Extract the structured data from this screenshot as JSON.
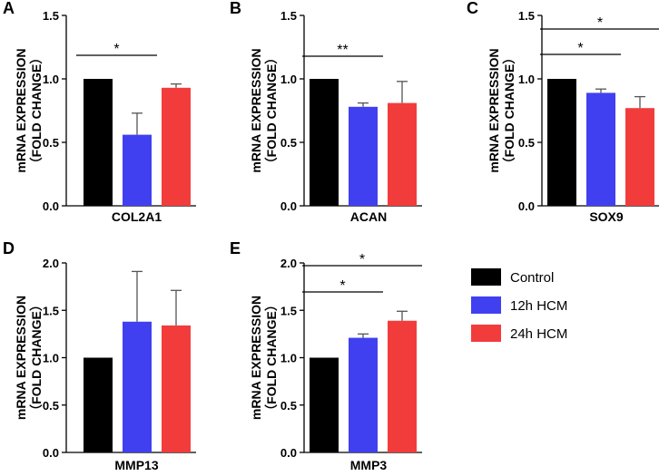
{
  "legend": [
    {
      "label": "Control",
      "color": "#000000"
    },
    {
      "label": "12h HCM",
      "color": "#4040f0"
    },
    {
      "label": "24h HCM",
      "color": "#f23c3c"
    }
  ],
  "chart_data": [
    {
      "type": "bar",
      "panel": "A",
      "title": "",
      "xlabel": "COL2A1",
      "ylabel": [
        "mRNA EXPRESSION",
        "（FOLD CHANGE）"
      ],
      "categories": [
        "Control",
        "12h HCM",
        "24h HCM"
      ],
      "values": [
        1.0,
        0.56,
        0.93
      ],
      "errors": [
        0,
        0.17,
        0.03
      ],
      "ylim": [
        0,
        1.5
      ],
      "yticks": [
        "0.0",
        "0.5",
        "1.0",
        "1.5"
      ],
      "significance": [
        {
          "from": 0,
          "to": 1,
          "label": "*"
        }
      ]
    },
    {
      "type": "bar",
      "panel": "B",
      "title": "",
      "xlabel": "ACAN",
      "ylabel": [
        "mRNA EXPRESSION",
        "（FOLD CHANGE）"
      ],
      "categories": [
        "Control",
        "12h HCM",
        "24h HCM"
      ],
      "values": [
        1.0,
        0.78,
        0.81
      ],
      "errors": [
        0,
        0.03,
        0.17
      ],
      "ylim": [
        0,
        1.5
      ],
      "yticks": [
        "0.0",
        "0.5",
        "1.0",
        "1.5"
      ],
      "significance": [
        {
          "from": 0,
          "to": 1,
          "label": "**"
        }
      ]
    },
    {
      "type": "bar",
      "panel": "C",
      "title": "",
      "xlabel": "SOX9",
      "ylabel": [
        "mRNA EXPRESSION",
        "（FOLD CHANGE）"
      ],
      "categories": [
        "Control",
        "12h HCM",
        "24h HCM"
      ],
      "values": [
        1.0,
        0.89,
        0.77
      ],
      "errors": [
        0,
        0.03,
        0.09
      ],
      "ylim": [
        0,
        1.5
      ],
      "yticks": [
        "0.0",
        "0.5",
        "1.0",
        "1.5"
      ],
      "significance": [
        {
          "from": 0,
          "to": 1,
          "label": "*"
        },
        {
          "from": 0,
          "to": 2,
          "label": "*"
        }
      ]
    },
    {
      "type": "bar",
      "panel": "D",
      "title": "",
      "xlabel": "MMP13",
      "ylabel": [
        "mRNA EXPRESSION",
        "（FOLD CHANGE）"
      ],
      "categories": [
        "Control",
        "12h HCM",
        "24h HCM"
      ],
      "values": [
        1.0,
        1.38,
        1.34
      ],
      "errors": [
        0,
        0.53,
        0.37
      ],
      "ylim": [
        0,
        2.0
      ],
      "yticks": [
        "0.0",
        "0.5",
        "1.0",
        "1.5",
        "2.0"
      ],
      "significance": []
    },
    {
      "type": "bar",
      "panel": "E",
      "title": "",
      "xlabel": "MMP3",
      "ylabel": [
        "mRNA EXPRESSION",
        "（FOLD CHANGE）"
      ],
      "categories": [
        "Control",
        "12h HCM",
        "24h HCM"
      ],
      "values": [
        1.0,
        1.21,
        1.39
      ],
      "errors": [
        0,
        0.04,
        0.1
      ],
      "ylim": [
        0,
        2.0
      ],
      "yticks": [
        "0.0",
        "0.5",
        "1.0",
        "1.5",
        "2.0"
      ],
      "significance": [
        {
          "from": 0,
          "to": 1,
          "label": "*"
        },
        {
          "from": 0,
          "to": 2,
          "label": "*"
        }
      ]
    }
  ]
}
